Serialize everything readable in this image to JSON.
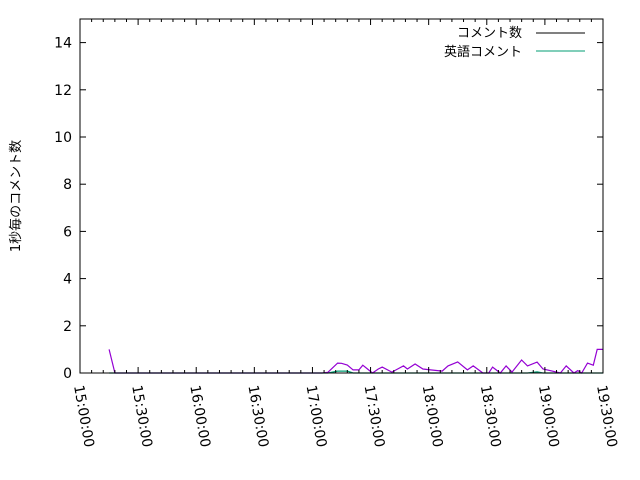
{
  "chart_data": {
    "type": "line",
    "title": "",
    "xlabel": "",
    "ylabel": "1秒毎のコメント数",
    "xlim": [
      "15:00:00",
      "19:30:00"
    ],
    "ylim": [
      0,
      15
    ],
    "x_ticks": [
      "15:00:00",
      "15:30:00",
      "16:00:00",
      "16:30:00",
      "17:00:00",
      "17:30:00",
      "18:00:00",
      "18:30:00",
      "19:00:00",
      "19:30:00"
    ],
    "y_ticks": [
      "0",
      "2",
      "4",
      "6",
      "8",
      "10",
      "12",
      "14"
    ],
    "grid": false,
    "legend": "top-right",
    "x": [
      "15:15:00",
      "15:18:00",
      "16:47:00",
      "17:00:00",
      "17:05:00",
      "17:08:00",
      "17:13:00",
      "17:15:00",
      "17:18:00",
      "17:21:00",
      "17:24:00",
      "17:26:00",
      "17:29:00",
      "17:31:00",
      "17:34:00",
      "17:36:00",
      "17:41:00",
      "17:47:00",
      "17:49:00",
      "17:53:00",
      "17:57:00",
      "18:01:00",
      "18:07:00",
      "18:10:00",
      "18:15:00",
      "18:20:00",
      "18:23:00",
      "18:28:00",
      "18:31:00",
      "18:33:00",
      "18:37:00",
      "18:40:00",
      "18:43:00",
      "18:48:00",
      "18:51:00",
      "18:56:00",
      "18:59:00",
      "19:08:00",
      "19:11:00",
      "19:15:00",
      "19:17:00",
      "19:19:00",
      "19:22:00",
      "19:25:00",
      "19:27:00",
      "19:30:00"
    ],
    "series": [
      {
        "name": "コメント数",
        "color": "#9400d3",
        "values": [
          1,
          0,
          0,
          0,
          0,
          0.03,
          0.42,
          0.41,
          0.34,
          0.13,
          0.13,
          0.33,
          0.13,
          0,
          0.17,
          0.25,
          0.04,
          0.3,
          0.17,
          0.38,
          0.17,
          0.13,
          0.08,
          0.3,
          0.47,
          0.13,
          0.3,
          0,
          0,
          0.25,
          0,
          0.3,
          0.04,
          0.55,
          0.3,
          0.46,
          0.17,
          0,
          0.3,
          0,
          0.1,
          0,
          0.42,
          0.33,
          1,
          1
        ]
      },
      {
        "name": "英語コメント",
        "color": "#009e73",
        "values": [
          0,
          0,
          0,
          0,
          0,
          0,
          0.08,
          0.08,
          0.08,
          0,
          0,
          0,
          0,
          0,
          0,
          0,
          0,
          0,
          0,
          0,
          0,
          0,
          0,
          0,
          0,
          0,
          0,
          0,
          0,
          0,
          0,
          0,
          0,
          0,
          0,
          0.05,
          0,
          0,
          0,
          0,
          0,
          0,
          0,
          0,
          0,
          0
        ]
      }
    ]
  }
}
